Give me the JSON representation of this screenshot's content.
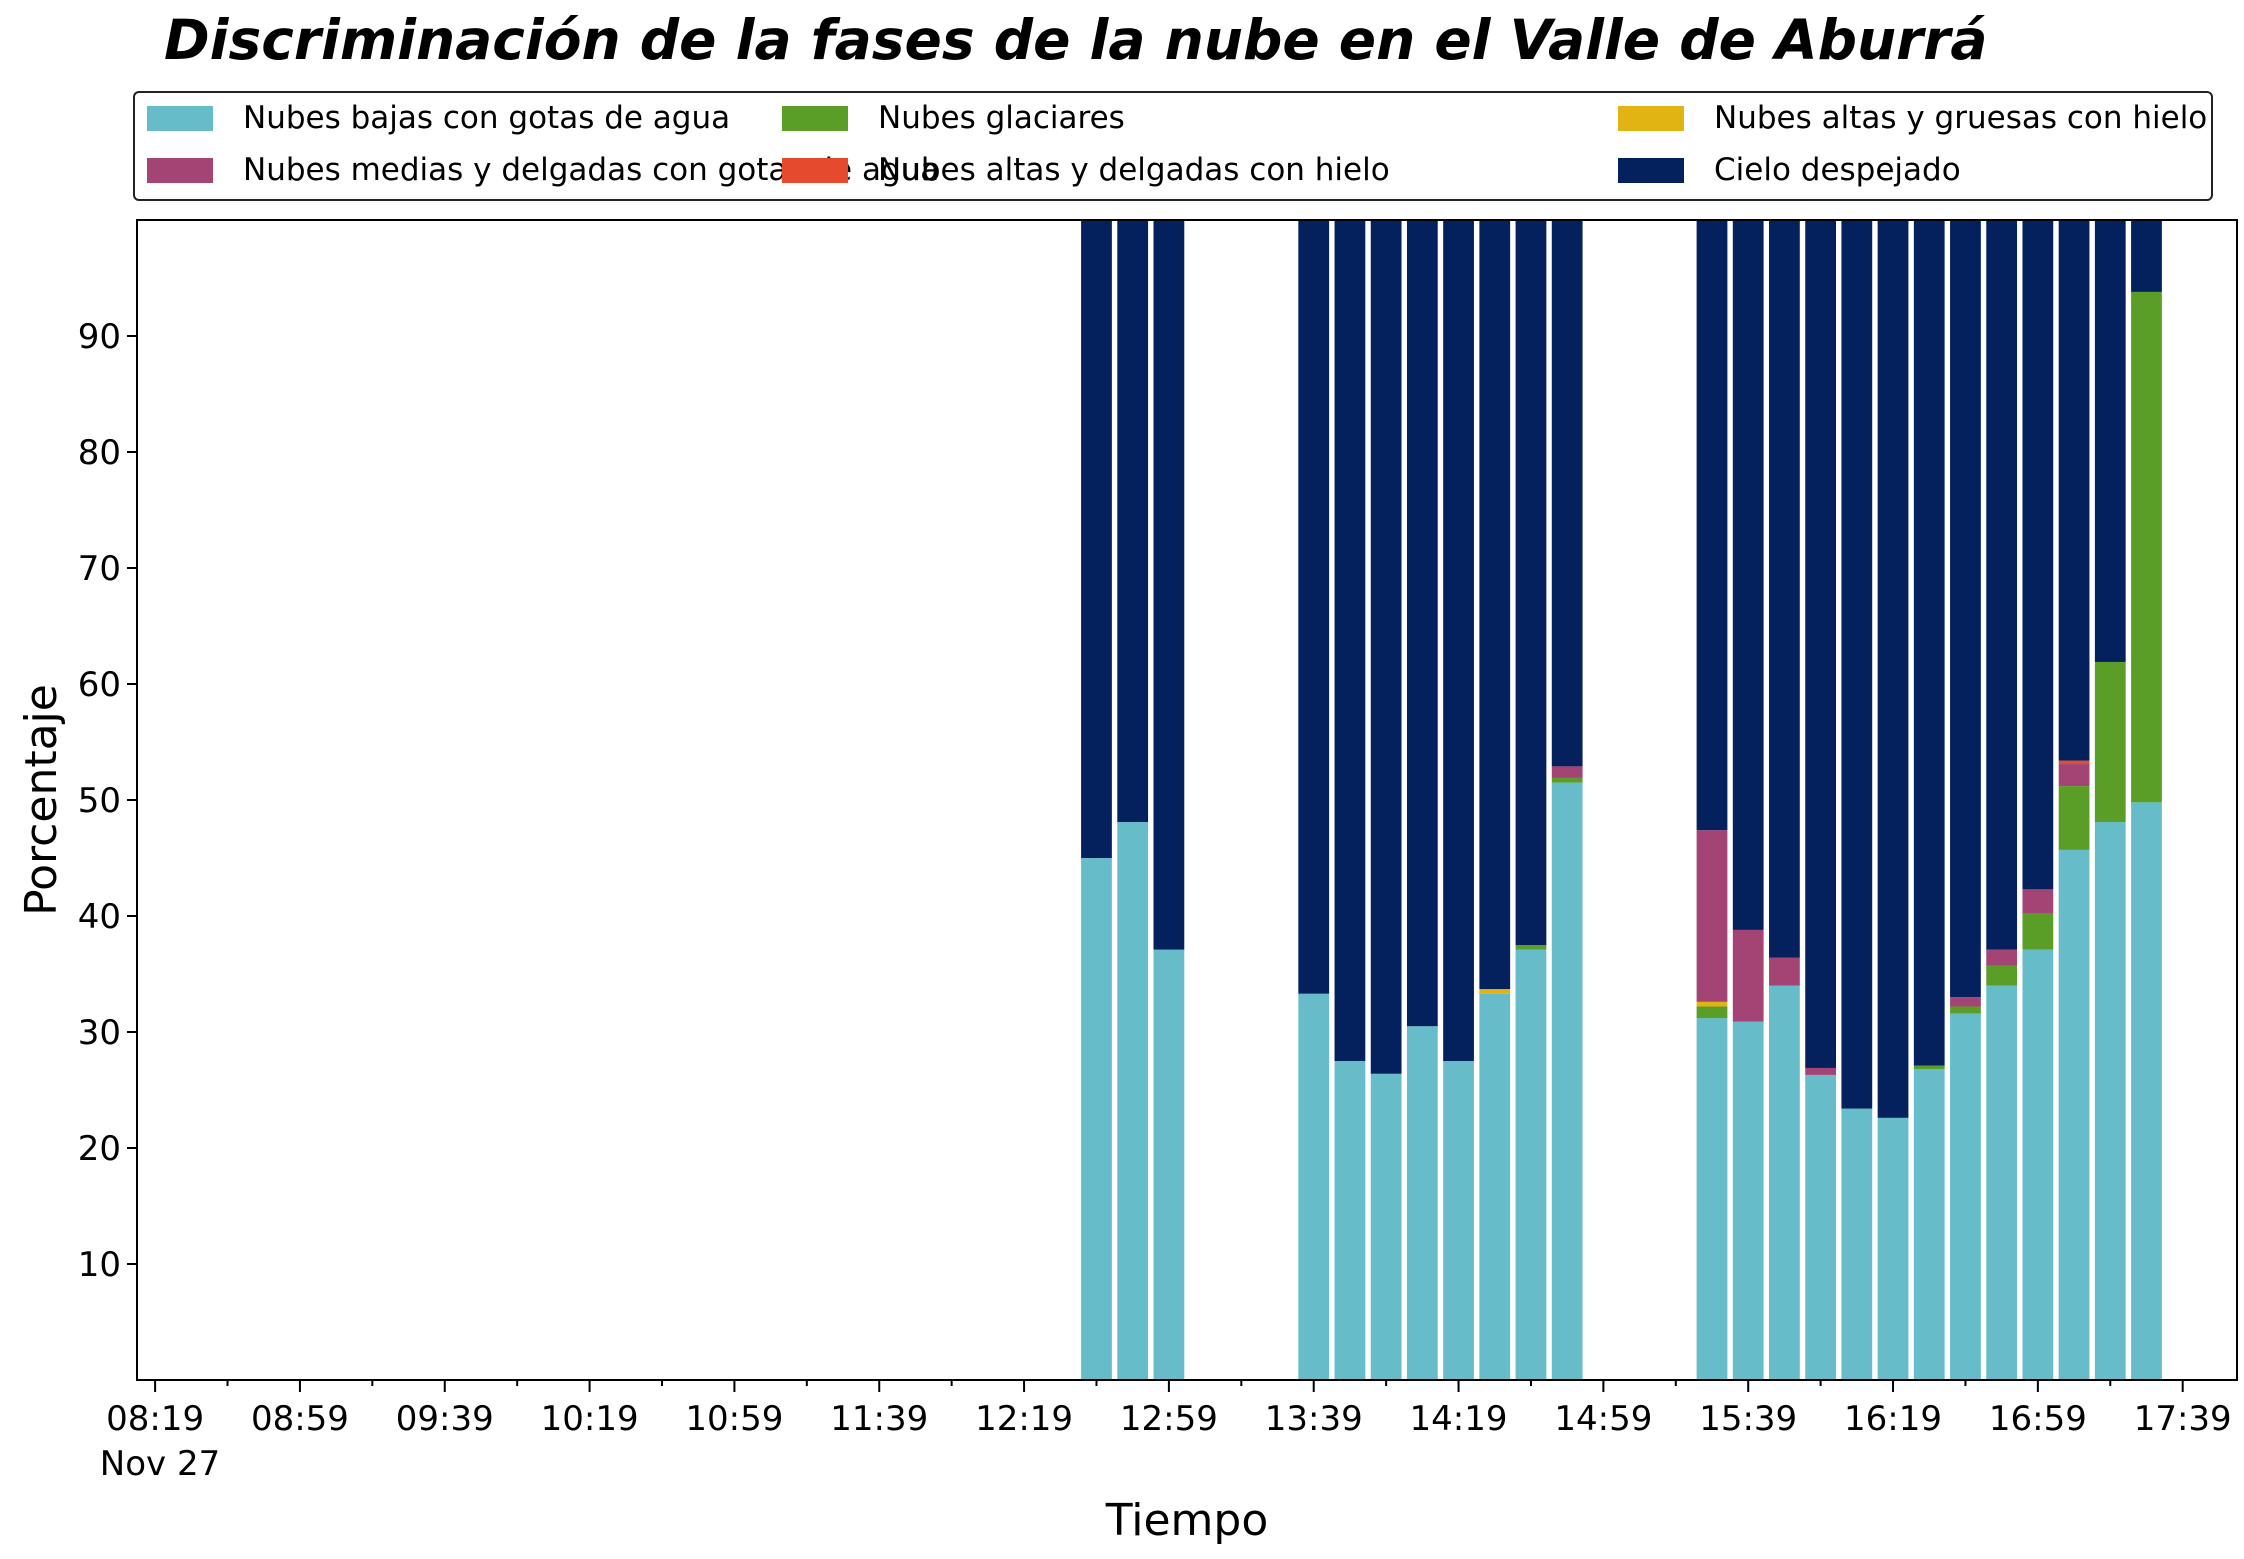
{
  "chart_data": {
    "type": "bar",
    "stacked": true,
    "title": "Discriminación de la fases de la nube en el Valle de Aburrá",
    "xlabel": "Tiempo",
    "ylabel": "Porcentaje",
    "ylim": [
      0,
      100
    ],
    "yticks": [
      10,
      20,
      30,
      40,
      50,
      60,
      70,
      80,
      90
    ],
    "xlim": [
      "08:14",
      "17:54"
    ],
    "x_tick_labels": [
      "08:19",
      "08:59",
      "09:39",
      "10:19",
      "10:59",
      "11:39",
      "12:19",
      "12:59",
      "13:39",
      "14:19",
      "14:59",
      "15:39",
      "16:19",
      "16:59",
      "17:39"
    ],
    "x_date_label": "Nov 27",
    "bar_width_minutes": 8.5,
    "grid": false,
    "legend_placement": "top, above plot, 3 columns",
    "times": [
      "12:39",
      "12:49",
      "12:59",
      "13:39",
      "13:49",
      "13:59",
      "14:09",
      "14:19",
      "14:29",
      "14:39",
      "14:49",
      "15:29",
      "15:39",
      "15:49",
      "15:59",
      "16:09",
      "16:19",
      "16:29",
      "16:39",
      "16:49",
      "16:59",
      "17:09",
      "17:19",
      "17:29"
    ],
    "series": [
      {
        "name": "Nubes bajas con gotas de agua",
        "color": "#66bdc9",
        "values": [
          45.0,
          48.1,
          37.1,
          33.3,
          27.5,
          26.4,
          30.5,
          27.5,
          33.3,
          37.1,
          51.5,
          31.2,
          30.9,
          34.0,
          26.3,
          23.4,
          22.6,
          26.8,
          31.6,
          34.0,
          37.1,
          45.7,
          48.1,
          49.8
        ]
      },
      {
        "name": "Nubes glaciares",
        "color": "#5a9e28",
        "values": [
          0,
          0,
          0,
          0,
          0,
          0,
          0,
          0,
          0,
          0.4,
          0.4,
          1.0,
          0,
          0,
          0,
          0,
          0,
          0.3,
          0.6,
          1.7,
          3.1,
          5.5,
          13.8,
          44.0
        ]
      },
      {
        "name": "Nubes altas y gruesas con hielo",
        "color": "#e1b413",
        "values": [
          0,
          0,
          0,
          0,
          0,
          0,
          0,
          0,
          0.4,
          0,
          0,
          0.4,
          0,
          0,
          0,
          0,
          0,
          0,
          0,
          0,
          0,
          0,
          0,
          0
        ]
      },
      {
        "name": "Nubes medias y delgadas con gotas de agua",
        "color": "#a34475",
        "values": [
          0,
          0,
          0,
          0,
          0,
          0,
          0,
          0,
          0,
          0,
          1.0,
          14.8,
          7.9,
          2.4,
          0.6,
          0,
          0,
          0,
          0.8,
          1.4,
          2.1,
          1.9,
          0,
          0
        ]
      },
      {
        "name": "Nubes altas y delgadas con hielo",
        "color": "#e64a2c",
        "values": [
          0,
          0,
          0,
          0,
          0,
          0,
          0,
          0,
          0,
          0,
          0,
          0,
          0,
          0,
          0,
          0,
          0,
          0,
          0,
          0,
          0,
          0.3,
          0,
          0
        ]
      },
      {
        "name": "Cielo despejado",
        "color": "#04215d",
        "values": [
          55.0,
          51.9,
          62.9,
          66.7,
          72.5,
          73.6,
          69.5,
          72.5,
          66.3,
          62.5,
          47.1,
          52.6,
          61.2,
          63.6,
          73.1,
          76.6,
          77.4,
          72.9,
          67.0,
          62.9,
          57.7,
          46.6,
          38.1,
          6.2
        ]
      }
    ]
  }
}
